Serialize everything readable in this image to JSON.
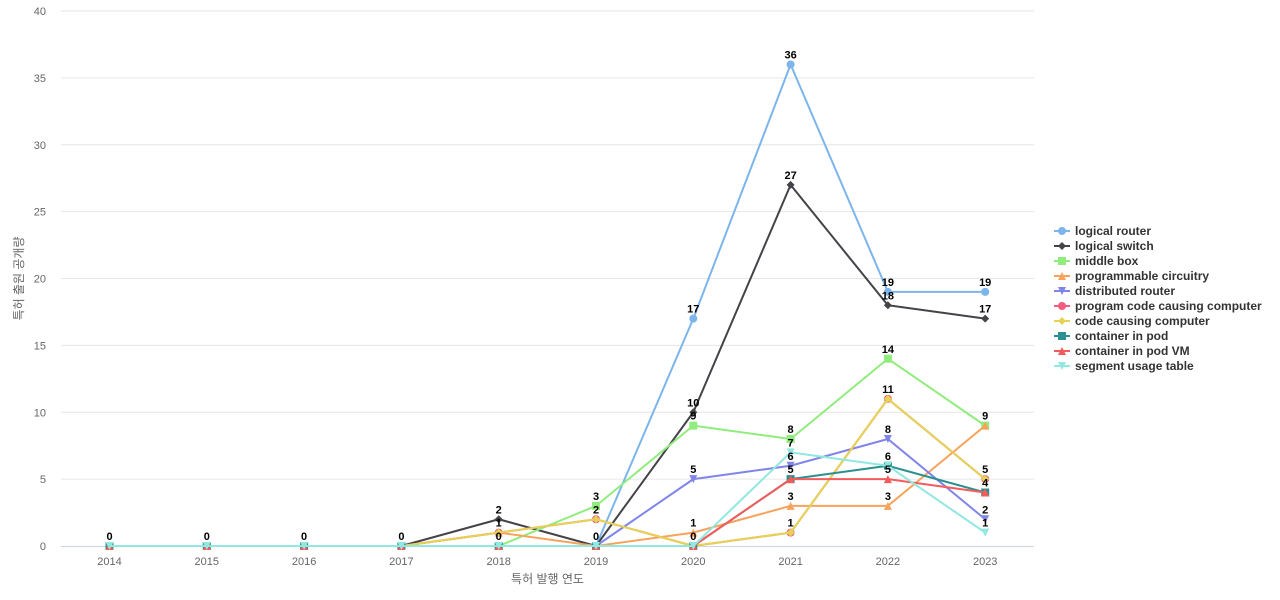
{
  "chart_data": {
    "type": "line",
    "xlabel": "특허 발행 연도",
    "ylabel": "특허 출원 공개량",
    "ylim": [
      0,
      40
    ],
    "yticks": [
      0,
      5,
      10,
      15,
      20,
      25,
      30,
      35,
      40
    ],
    "x": [
      "2014",
      "2015",
      "2016",
      "2017",
      "2018",
      "2019",
      "2020",
      "2021",
      "2022",
      "2023"
    ],
    "grid": true,
    "legend_position": "right",
    "series": [
      {
        "name": "logical router",
        "color": "#7cb5ec",
        "marker": "circle",
        "values": [
          0,
          0,
          0,
          0,
          0,
          0,
          17,
          36,
          19,
          19
        ]
      },
      {
        "name": "logical switch",
        "color": "#434348",
        "marker": "diamond",
        "values": [
          0,
          0,
          0,
          0,
          2,
          0,
          10,
          27,
          18,
          17
        ]
      },
      {
        "name": "middle box",
        "color": "#90ed7d",
        "marker": "square",
        "values": [
          0,
          0,
          0,
          0,
          0,
          3,
          9,
          8,
          14,
          9
        ]
      },
      {
        "name": "programmable circuitry",
        "color": "#f7a35c",
        "marker": "triangle",
        "values": [
          0,
          0,
          0,
          0,
          1,
          0,
          1,
          3,
          3,
          9
        ]
      },
      {
        "name": "distributed router",
        "color": "#8085e9",
        "marker": "triangle-down",
        "values": [
          0,
          0,
          0,
          0,
          0,
          0,
          5,
          6,
          8,
          2
        ]
      },
      {
        "name": "program code causing computer",
        "color": "#f15c80",
        "marker": "circle",
        "values": [
          0,
          0,
          0,
          0,
          1,
          2,
          0,
          1,
          11,
          5
        ]
      },
      {
        "name": "code causing computer",
        "color": "#e4d354",
        "marker": "diamond",
        "values": [
          0,
          0,
          0,
          0,
          1,
          2,
          0,
          1,
          11,
          5
        ]
      },
      {
        "name": "container in pod",
        "color": "#2b908f",
        "marker": "square",
        "values": [
          0,
          0,
          0,
          0,
          0,
          0,
          0,
          5,
          6,
          4
        ]
      },
      {
        "name": "container in pod VM",
        "color": "#f45b5b",
        "marker": "triangle",
        "values": [
          0,
          0,
          0,
          0,
          0,
          0,
          0,
          5,
          5,
          4
        ]
      },
      {
        "name": "segment usage table",
        "color": "#91e8e1",
        "marker": "triangle-down",
        "values": [
          0,
          0,
          0,
          0,
          0,
          0,
          0,
          7,
          6,
          1
        ]
      }
    ],
    "data_labels": [
      {
        "x": "2014",
        "y": 0,
        "text": "0"
      },
      {
        "x": "2015",
        "y": 0,
        "text": "0"
      },
      {
        "x": "2016",
        "y": 0,
        "text": "0"
      },
      {
        "x": "2017",
        "y": 0,
        "text": "0"
      },
      {
        "x": "2018",
        "y": 2,
        "text": "2"
      },
      {
        "x": "2018",
        "y": 1,
        "text": "1"
      },
      {
        "x": "2018",
        "y": 0,
        "text": "0"
      },
      {
        "x": "2019",
        "y": 3,
        "text": "3"
      },
      {
        "x": "2019",
        "y": 2,
        "text": "2"
      },
      {
        "x": "2019",
        "y": 0,
        "text": "0"
      },
      {
        "x": "2020",
        "y": 17,
        "text": "17"
      },
      {
        "x": "2020",
        "y": 10,
        "text": "10"
      },
      {
        "x": "2020",
        "y": 9,
        "text": "9"
      },
      {
        "x": "2020",
        "y": 5,
        "text": "5"
      },
      {
        "x": "2020",
        "y": 1,
        "text": "1"
      },
      {
        "x": "2020",
        "y": 0,
        "text": "0"
      },
      {
        "x": "2021",
        "y": 36,
        "text": "36"
      },
      {
        "x": "2021",
        "y": 27,
        "text": "27"
      },
      {
        "x": "2021",
        "y": 8,
        "text": "8"
      },
      {
        "x": "2021",
        "y": 7,
        "text": "7"
      },
      {
        "x": "2021",
        "y": 6,
        "text": "6"
      },
      {
        "x": "2021",
        "y": 5,
        "text": "5"
      },
      {
        "x": "2021",
        "y": 3,
        "text": "3"
      },
      {
        "x": "2021",
        "y": 1,
        "text": "1"
      },
      {
        "x": "2022",
        "y": 19,
        "text": "19"
      },
      {
        "x": "2022",
        "y": 18,
        "text": "18"
      },
      {
        "x": "2022",
        "y": 14,
        "text": "14"
      },
      {
        "x": "2022",
        "y": 11,
        "text": "11"
      },
      {
        "x": "2022",
        "y": 8,
        "text": "8"
      },
      {
        "x": "2022",
        "y": 6,
        "text": "6"
      },
      {
        "x": "2022",
        "y": 5,
        "text": "5"
      },
      {
        "x": "2022",
        "y": 3,
        "text": "3"
      },
      {
        "x": "2023",
        "y": 19,
        "text": "19"
      },
      {
        "x": "2023",
        "y": 17,
        "text": "17"
      },
      {
        "x": "2023",
        "y": 9,
        "text": "9"
      },
      {
        "x": "2023",
        "y": 5,
        "text": "5"
      },
      {
        "x": "2023",
        "y": 4,
        "text": "4"
      },
      {
        "x": "2023",
        "y": 2,
        "text": "2"
      },
      {
        "x": "2023",
        "y": 1,
        "text": "1"
      }
    ]
  }
}
